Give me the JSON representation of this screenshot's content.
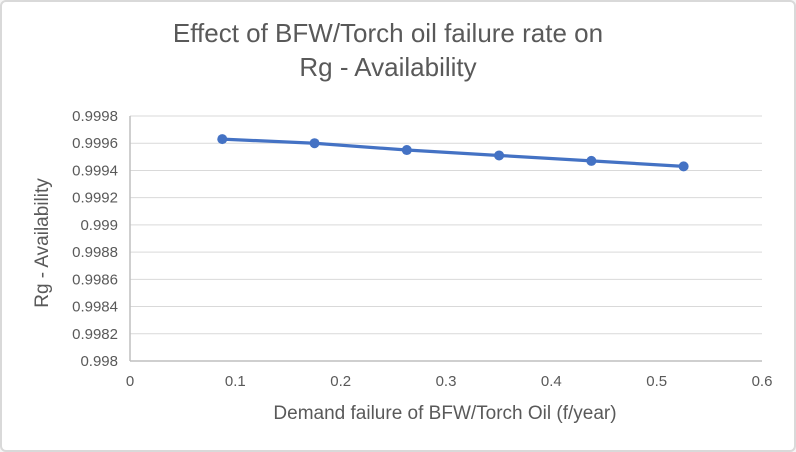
{
  "window": {
    "type": "excel-style-chart",
    "background": "#FFFFFF",
    "border_color": "#D9D9D9"
  },
  "chart_data": {
    "type": "line",
    "title": "Effect of BFW/Torch oil failure rate on Rg - Availability",
    "title_lines": [
      "Effect of BFW/Torch oil failure rate on",
      "Rg - Availability"
    ],
    "xlabel": "Demand failure of BFW/Torch Oil (f/year)",
    "ylabel": "Rg - Availability",
    "xlim": [
      0,
      0.6
    ],
    "ylim": [
      0.998,
      0.9998
    ],
    "x_tick_labels": [
      "0",
      "0.1",
      "0.2",
      "0.3",
      "0.4",
      "0.5",
      "0.6"
    ],
    "y_tick_labels": [
      "0.9998",
      "0.9996",
      "0.9994",
      "0.9992",
      "0.999",
      "0.9988",
      "0.9986",
      "0.9984",
      "0.9982",
      "0.998"
    ],
    "grid": "horizontal-major-only",
    "legend": "none",
    "series": [
      {
        "name": "Rg - Availability",
        "color": "#4472C4",
        "marker": "circle",
        "line_style": "solid",
        "x": [
          0.0876,
          0.1752,
          0.2628,
          0.3504,
          0.438,
          0.5256
        ],
        "y": [
          0.99963,
          0.9996,
          0.99955,
          0.99951,
          0.99947,
          0.99943
        ]
      }
    ]
  },
  "colors": {
    "series_blue": "#4472C4",
    "gridline": "#D9D9D9",
    "axis_line": "#BFBFBF",
    "text_gray": "#595959",
    "background": "#FFFFFF",
    "chart_border": "#D9D9D9"
  }
}
